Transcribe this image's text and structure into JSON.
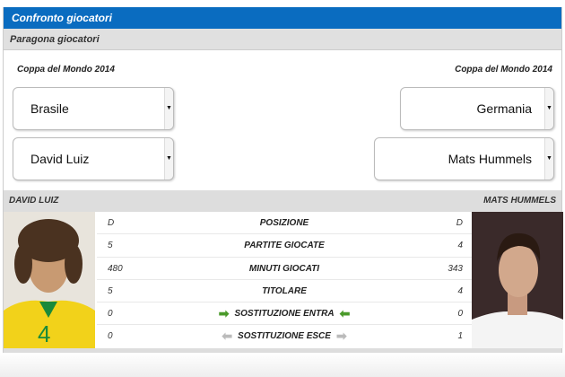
{
  "header": {
    "title": "Confronto giocatori"
  },
  "subheader": {
    "title": "Paragona giocatori"
  },
  "left": {
    "competition": "Coppa del Mondo 2014",
    "team": "Brasile",
    "player": "David Luiz",
    "name_caps": "DAVID LUIZ"
  },
  "right": {
    "competition": "Coppa del Mondo 2014",
    "team": "Germania",
    "player": "Mats Hummels",
    "name_caps": "MATS HUMMELS"
  },
  "stats": [
    {
      "label": "POSIZIONE",
      "left": "D",
      "right": "D"
    },
    {
      "label": "PARTITE GIOCATE",
      "left": "5",
      "right": "4"
    },
    {
      "label": "MINUTI GIOCATI",
      "left": "480",
      "right": "343"
    },
    {
      "label": "TITOLARE",
      "left": "5",
      "right": "4"
    },
    {
      "label": "SOSTITUZIONE ENTRA",
      "left": "0",
      "right": "0",
      "icons": "green-arrows-in"
    },
    {
      "label": "SOSTITUZIONE ESCE",
      "left": "0",
      "right": "1",
      "icons": "gray-arrows-out"
    }
  ],
  "colors": {
    "header": "#0a6cc0",
    "arrow_in": "#4a9a2a",
    "arrow_out": "#bbbbbb"
  }
}
